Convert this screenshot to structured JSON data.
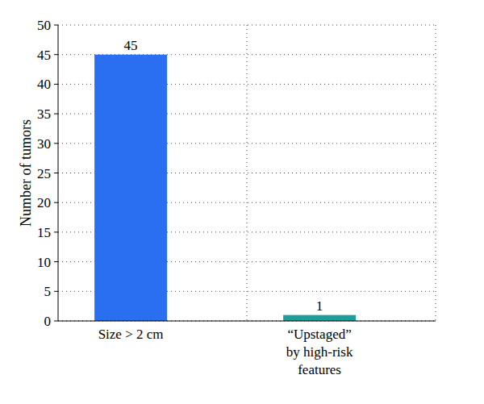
{
  "chart_data": {
    "type": "bar",
    "y_label": "Number of tumors",
    "categories": [
      "Size > 2 cm",
      "“Upstaged” by high-risk features"
    ],
    "values": [
      45,
      1
    ],
    "colors": [
      "#2a6ff0",
      "#1d9e9c"
    ],
    "ylim": [
      0,
      50
    ],
    "yticks": [
      0,
      5,
      10,
      15,
      20,
      25,
      30,
      35,
      40,
      45,
      50
    ],
    "grid": true,
    "data_labels": true
  }
}
